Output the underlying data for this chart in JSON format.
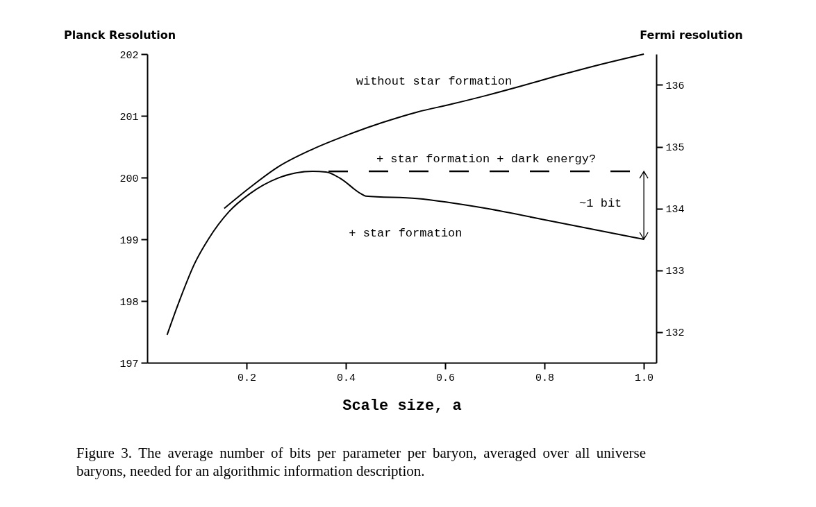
{
  "chart_data": {
    "type": "line",
    "xlabel": "Scale size, a",
    "ylabel": "Planck Resolution",
    "y2label": "Fermi resolution",
    "xlim": [
      0,
      1.025
    ],
    "xticks": [
      0.2,
      0.4,
      0.6,
      0.8,
      {
        "value": 1.0,
        "label": "1.0"
      }
    ],
    "ylim": [
      197,
      202
    ],
    "yticks": [
      197,
      198,
      199,
      200,
      201,
      202
    ],
    "y2lim": [
      131.5,
      136.5
    ],
    "y2ticks": [
      132,
      133,
      134,
      135,
      136
    ],
    "grid": false,
    "marker": "none",
    "series": [
      {
        "name": "without star formation",
        "color": "#000000",
        "line_style": "solid",
        "x": [
          0.155,
          0.207,
          0.263,
          0.333,
          0.403,
          0.473,
          0.543,
          0.613,
          0.683,
          0.752,
          0.822,
          0.892,
          1.0
        ],
        "values": [
          199.5,
          199.84,
          200.17,
          200.46,
          200.69,
          200.89,
          201.06,
          201.19,
          201.33,
          201.48,
          201.64,
          201.79,
          202.0
        ]
      },
      {
        "name": "+ star formation",
        "color": "#000000",
        "line_style": "solid",
        "x": [
          0.04,
          0.067,
          0.095,
          0.123,
          0.165,
          0.207,
          0.263,
          0.333,
          0.36,
          0.388,
          0.43,
          0.44,
          0.543,
          0.683,
          0.822,
          1.0
        ],
        "values": [
          197.45,
          198.05,
          198.6,
          199.0,
          199.45,
          199.74,
          199.99,
          200.1,
          200.09,
          199.99,
          199.74,
          199.7,
          199.66,
          199.5,
          199.28,
          199.0
        ]
      },
      {
        "name": "+ star formation + dark energy?",
        "color": "#000000",
        "line_style": "dashed",
        "x": [
          0.365,
          1.0
        ],
        "values": [
          200.1,
          200.1
        ]
      }
    ],
    "annotations": [
      "~1 bit",
      "Figure 3. The average number of bits per parameter per baryon, averaged over all universe baryons, needed for an algorithmic information description."
    ]
  }
}
